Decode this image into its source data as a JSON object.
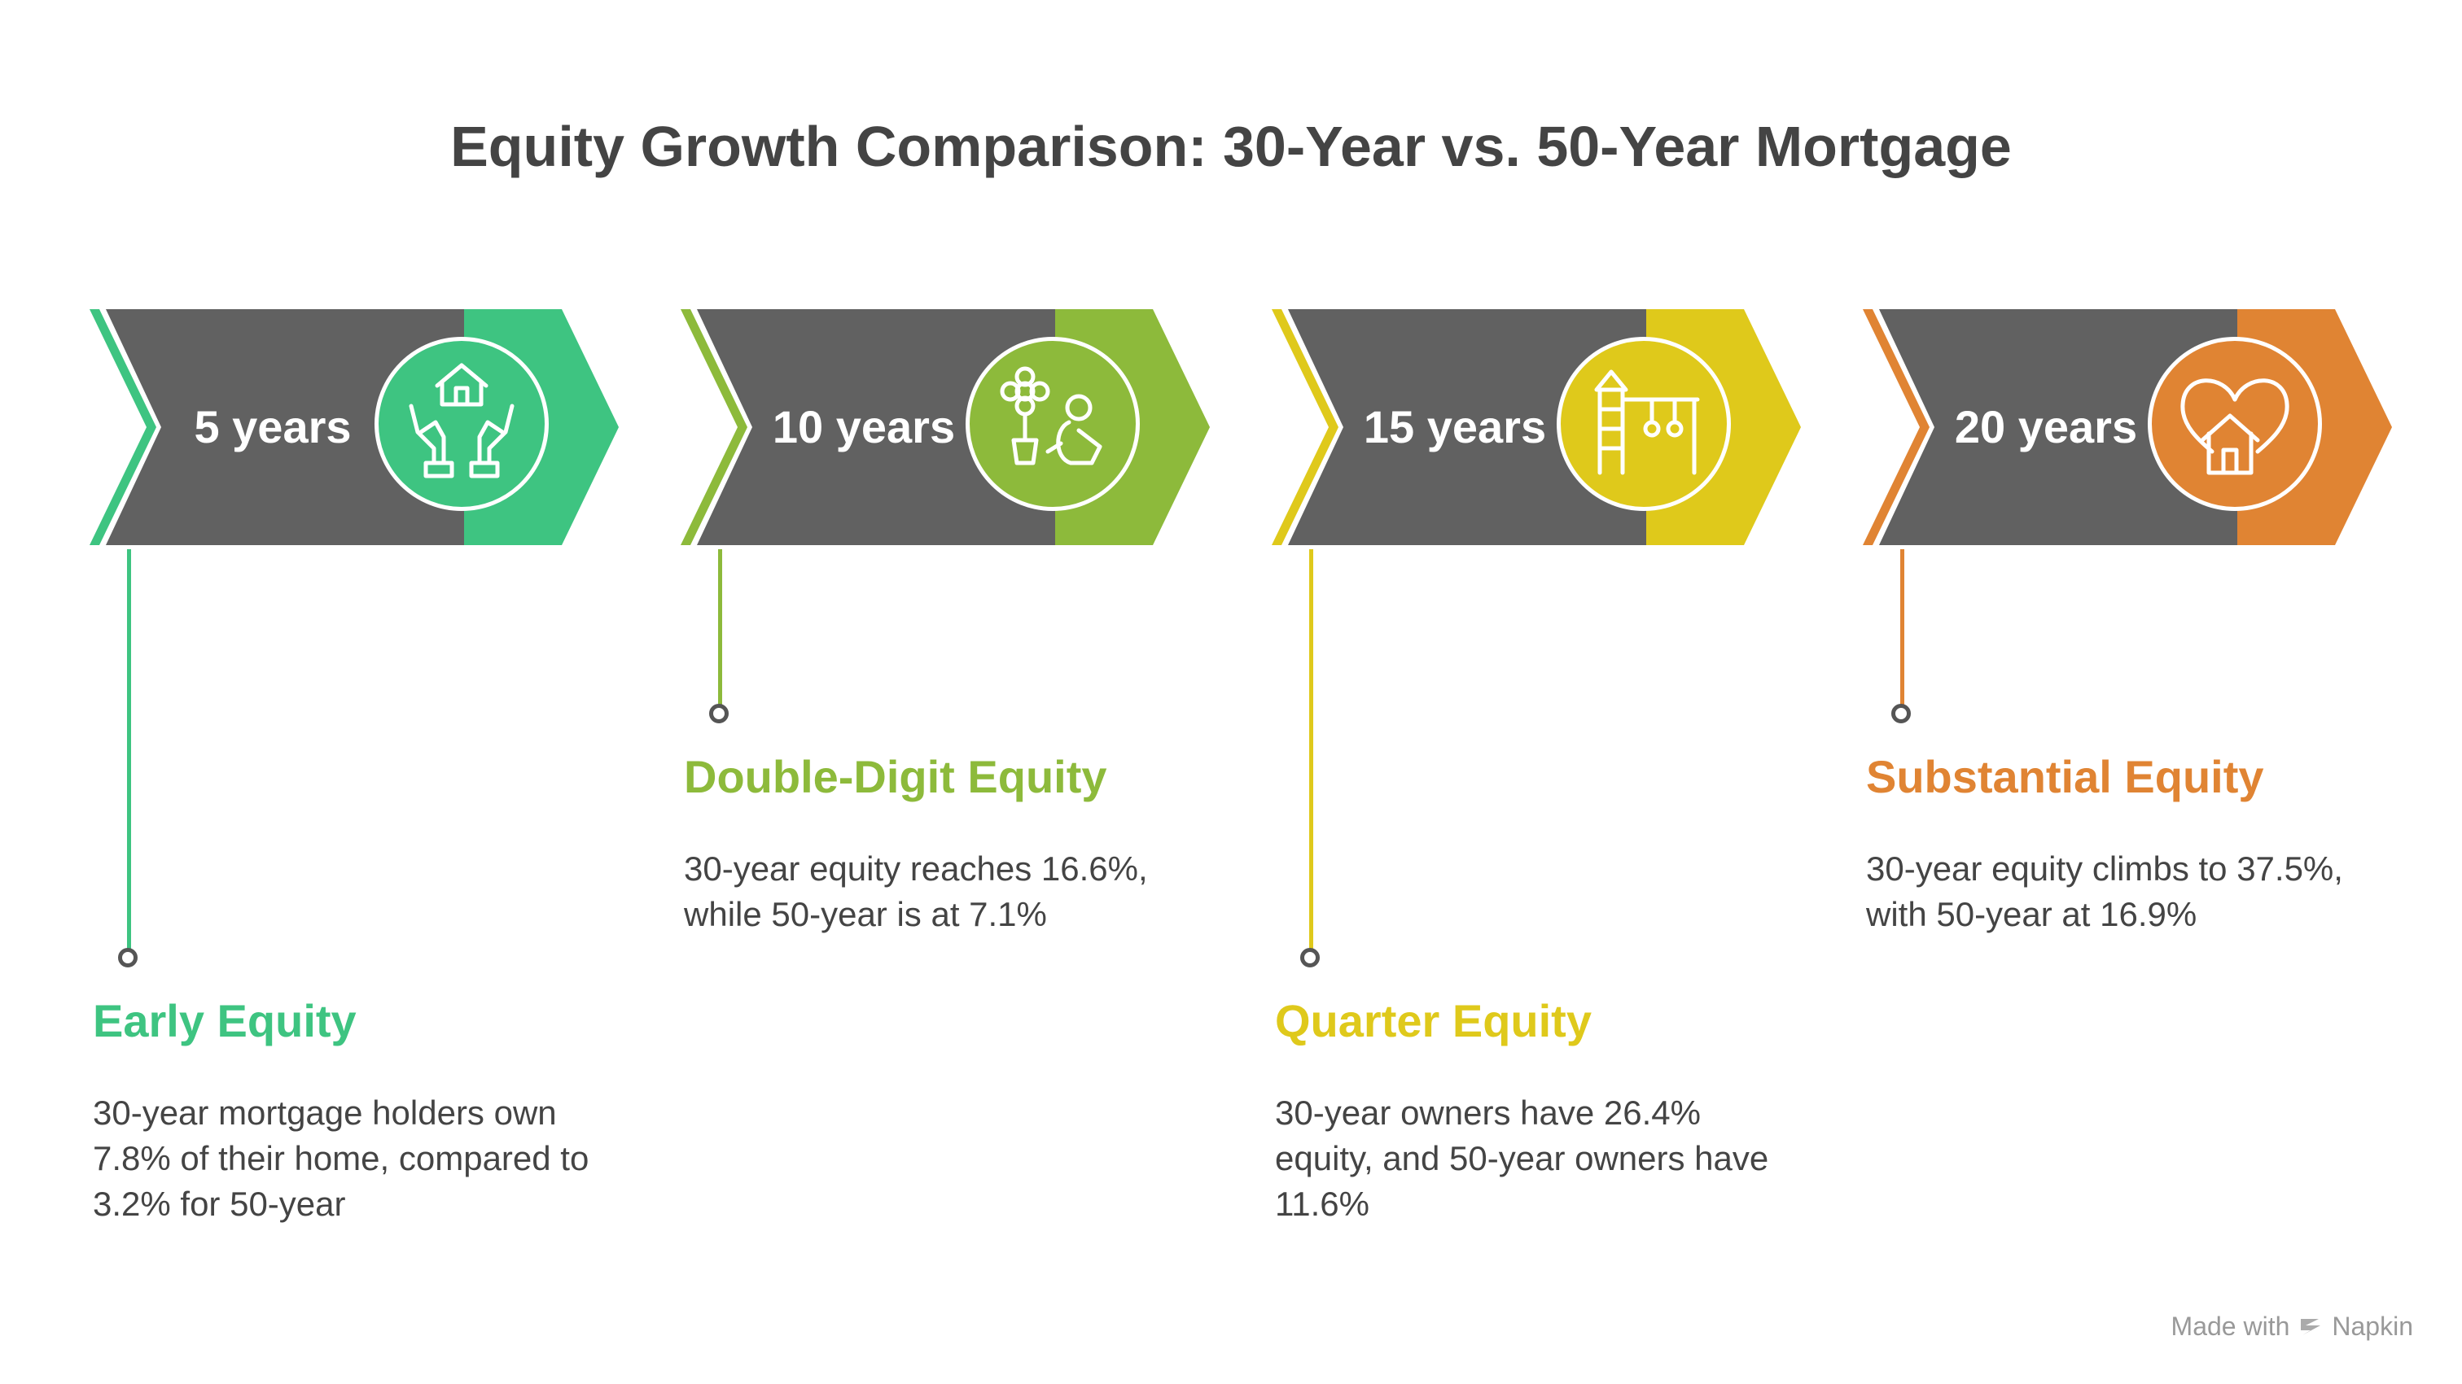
{
  "title": "Equity Growth Comparison: 30-Year vs. 50-Year Mortgage",
  "stages": [
    {
      "years_label": "5 years",
      "color": "#3EC481",
      "icon": "hands-house-icon",
      "heading": "Early Equity",
      "description": "30-year mortgage holders own 7.8% of their home, compared to 3.2% for 50-year"
    },
    {
      "years_label": "10 years",
      "color": "#8DBA3B",
      "icon": "flower-child-icon",
      "heading": "Double-Digit Equity",
      "description": "30-year equity reaches 16.6%, while 50-year is at 7.1%"
    },
    {
      "years_label": "15 years",
      "color": "#DFC91B",
      "icon": "playground-icon",
      "heading": "Quarter Equity",
      "description": "30-year owners have 26.4% equity, and 50-year owners have 11.6%"
    },
    {
      "years_label": "20 years",
      "color": "#E08433",
      "icon": "heart-house-icon",
      "heading": "Substantial Equity",
      "description": "30-year equity climbs to 37.5%, with 50-year at 16.9%"
    }
  ],
  "branding": {
    "made_with": "Made with",
    "brand_name": "Napkin"
  }
}
